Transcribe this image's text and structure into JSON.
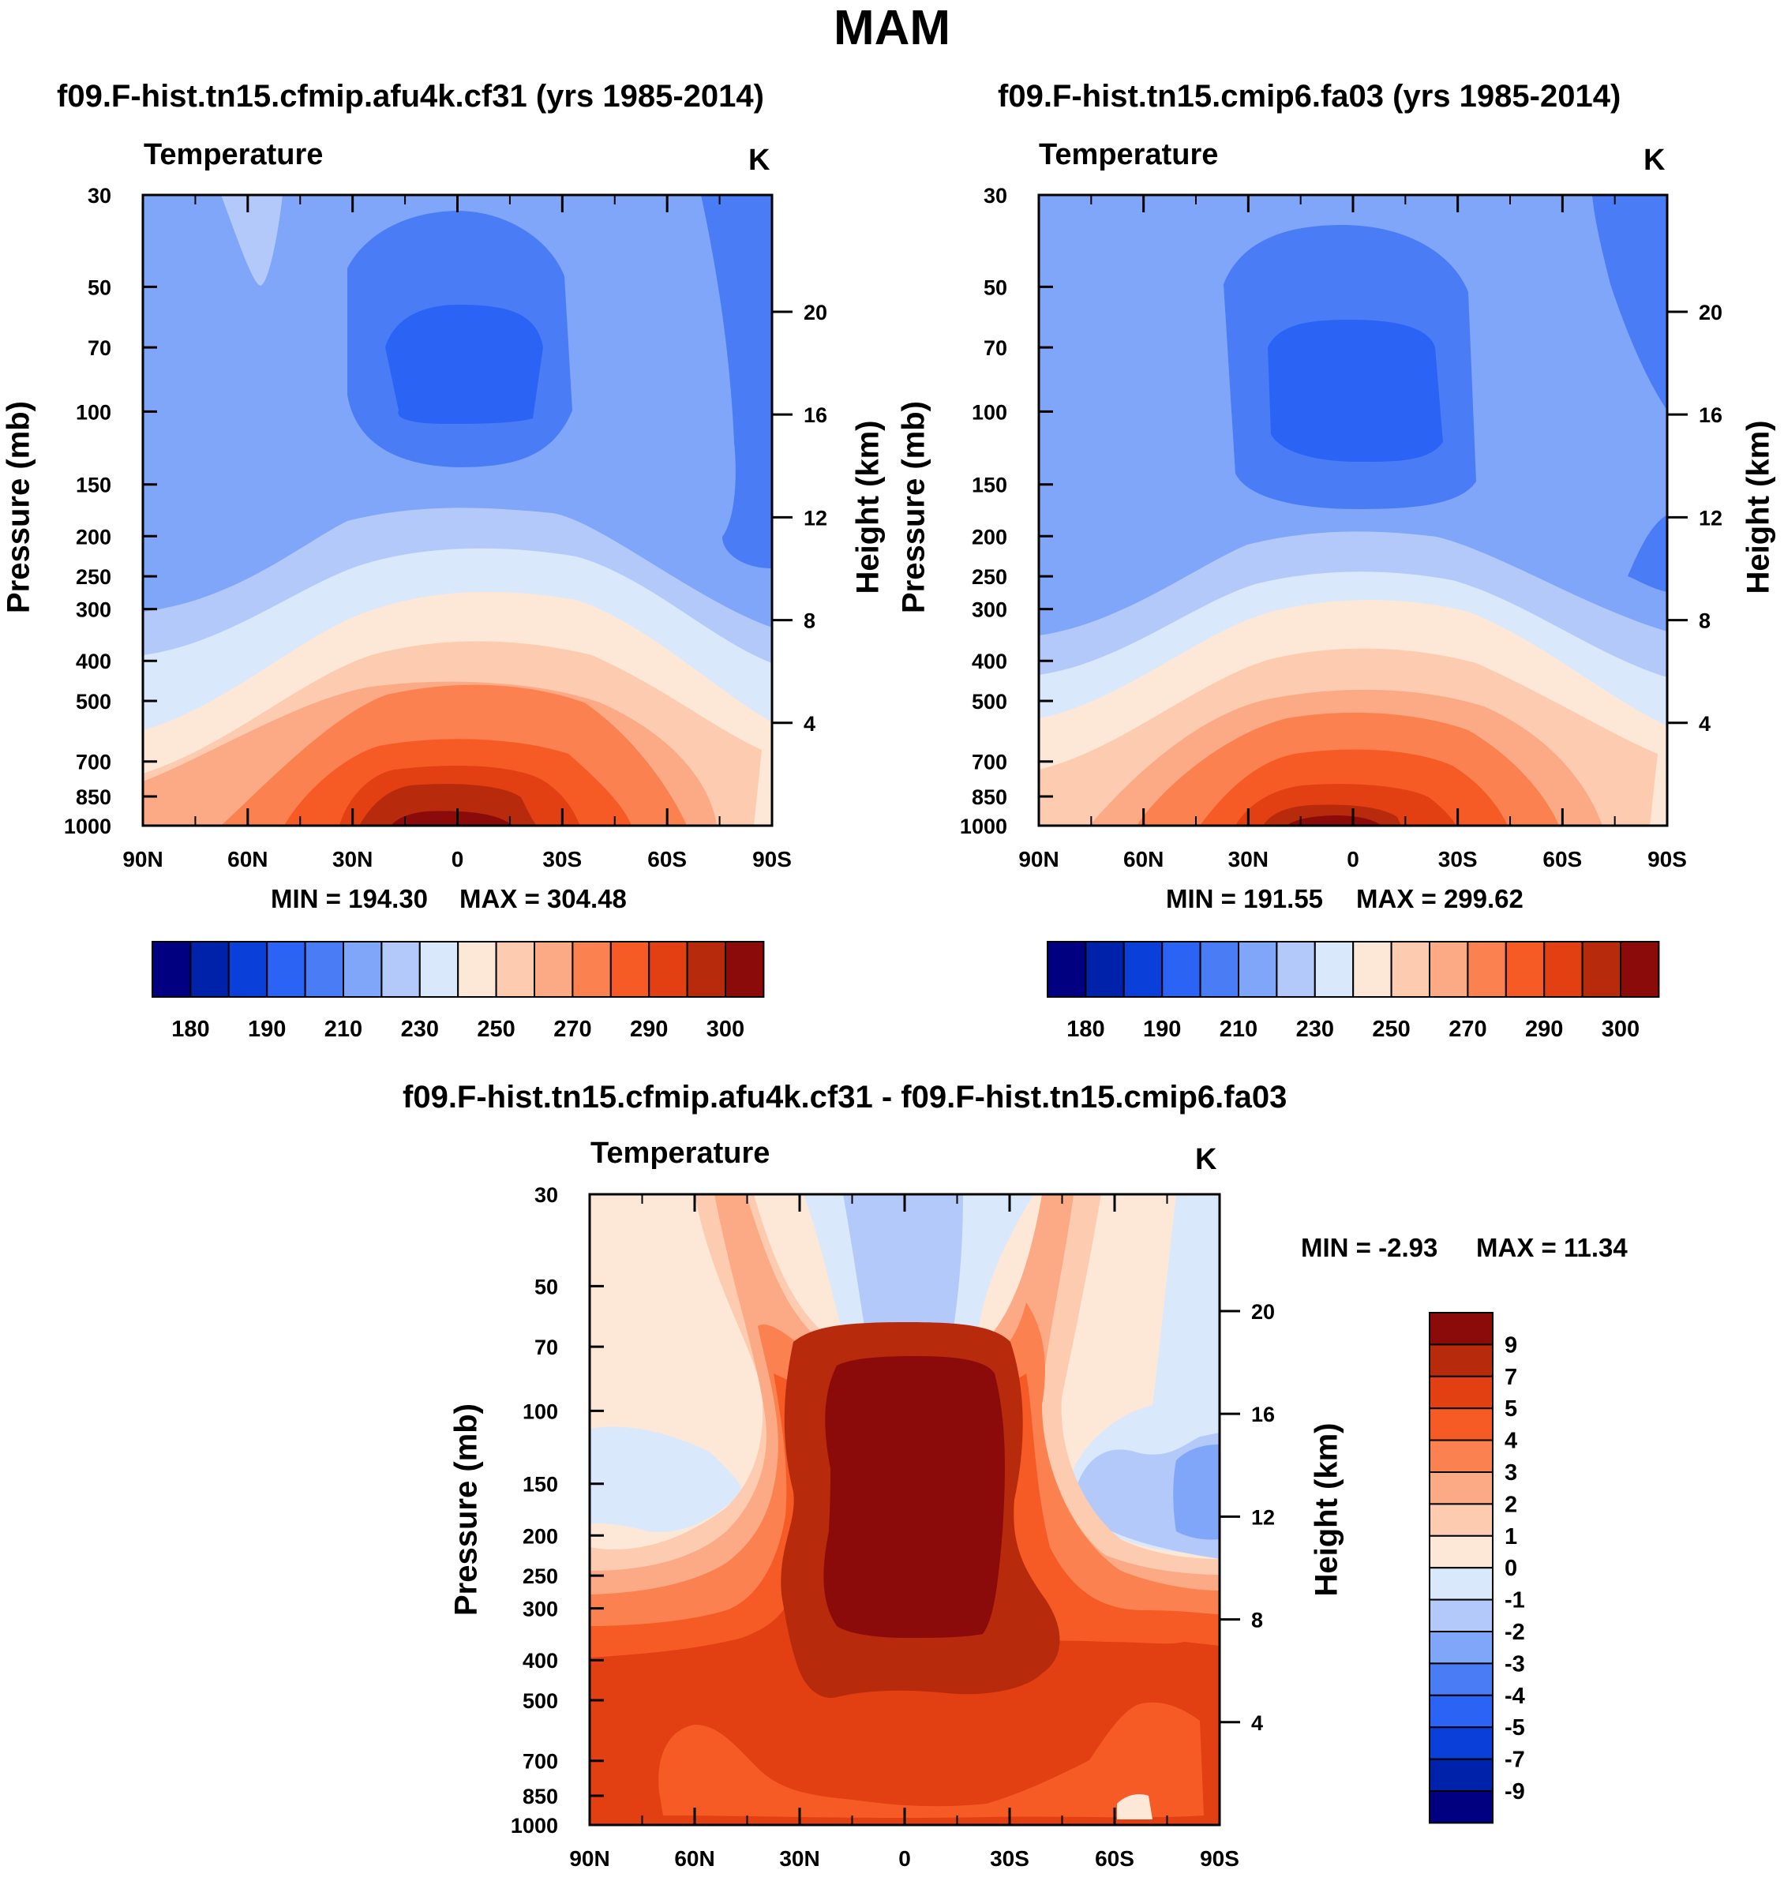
{
  "title": "MAM",
  "colors": {
    "abs_levels": [
      "#000080",
      "#0022aa",
      "#0a3fd9",
      "#2b63f5",
      "#4a7df5",
      "#7fa6f8",
      "#b3c9fa",
      "#d9e8fb",
      "#fde8d8",
      "#fdcbb0",
      "#fca985",
      "#fb8250",
      "#f65b26",
      "#e23f12",
      "#b72a0c",
      "#8b0a0a"
    ],
    "diff_levels": [
      "#000080",
      "#0022aa",
      "#0a3fd9",
      "#2b63f5",
      "#4a7df5",
      "#7fa6f8",
      "#b3c9fa",
      "#d9e8fb",
      "#fde8d8",
      "#fdcbb0",
      "#fca985",
      "#fb8250",
      "#f65b26",
      "#e23f12",
      "#b72a0c",
      "#8b0a0a"
    ]
  },
  "chart_data": [
    {
      "type": "heatmap",
      "title": "f09.F-hist.tn15.cfmip.afu4k.cf31 (yrs 1985-2014)",
      "variable": "Temperature",
      "units": "K",
      "xlabel": "",
      "ylabel": "Pressure (mb)",
      "ylabel_right": "Height (km)",
      "x_ticks": [
        "90N",
        "60N",
        "30N",
        "0",
        "30S",
        "60S",
        "90S"
      ],
      "y_ticks": [
        "30",
        "50",
        "70",
        "100",
        "150",
        "200",
        "250",
        "300",
        "400",
        "500",
        "700",
        "850",
        "1000"
      ],
      "y_ticks_right": [
        "20",
        "16",
        "12",
        "8",
        "4"
      ],
      "min_text": "MIN = 194.30",
      "max_text": "MAX = 304.48",
      "min": 194.3,
      "max": 304.48,
      "colorbar_labels": [
        "180",
        "190",
        "210",
        "230",
        "250",
        "270",
        "290",
        "300"
      ]
    },
    {
      "type": "heatmap",
      "title": "f09.F-hist.tn15.cmip6.fa03 (yrs 1985-2014)",
      "variable": "Temperature",
      "units": "K",
      "xlabel": "",
      "ylabel": "Pressure (mb)",
      "ylabel_right": "Height (km)",
      "x_ticks": [
        "90N",
        "60N",
        "30N",
        "0",
        "30S",
        "60S",
        "90S"
      ],
      "y_ticks": [
        "30",
        "50",
        "70",
        "100",
        "150",
        "200",
        "250",
        "300",
        "400",
        "500",
        "700",
        "850",
        "1000"
      ],
      "y_ticks_right": [
        "20",
        "16",
        "12",
        "8",
        "4"
      ],
      "min_text": "MIN = 191.55",
      "max_text": "MAX = 299.62",
      "min": 191.55,
      "max": 299.62,
      "colorbar_labels": [
        "180",
        "190",
        "210",
        "230",
        "250",
        "270",
        "290",
        "300"
      ]
    },
    {
      "type": "heatmap",
      "title": "f09.F-hist.tn15.cfmip.afu4k.cf31 - f09.F-hist.tn15.cmip6.fa03",
      "variable": "Temperature",
      "units": "K",
      "xlabel": "",
      "ylabel": "Pressure (mb)",
      "ylabel_right": "Height (km)",
      "x_ticks": [
        "90N",
        "60N",
        "30N",
        "0",
        "30S",
        "60S",
        "90S"
      ],
      "y_ticks": [
        "30",
        "50",
        "70",
        "100",
        "150",
        "200",
        "250",
        "300",
        "400",
        "500",
        "700",
        "850",
        "1000"
      ],
      "y_ticks_right": [
        "20",
        "16",
        "12",
        "8",
        "4"
      ],
      "min_text": "MIN =  -2.93",
      "max_text": "MAX =  11.34",
      "min": -2.93,
      "max": 11.34,
      "colorbar_labels": [
        "9",
        "7",
        "5",
        "4",
        "3",
        "2",
        "1",
        "0",
        "-1",
        "-2",
        "-3",
        "-4",
        "-5",
        "-7",
        "-9"
      ]
    }
  ]
}
